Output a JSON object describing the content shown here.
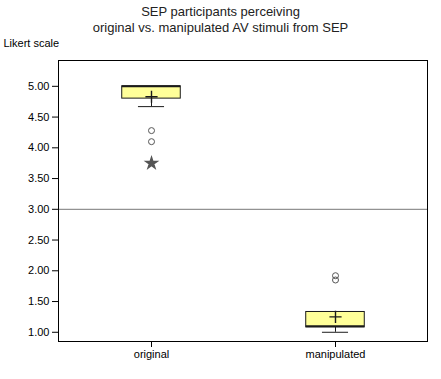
{
  "chart_data": {
    "type": "box",
    "title": "SEP participants perceiving",
    "subtitle": "original vs. manipulated AV stimuli from SEP",
    "ylabel": "Likert scale",
    "categories": [
      "original",
      "manipulated"
    ],
    "ylim": [
      0.85,
      5.42
    ],
    "yticks": [
      {
        "value": 1.0,
        "label": "1.00"
      },
      {
        "value": 1.5,
        "label": "1.50"
      },
      {
        "value": 2.0,
        "label": "2.00"
      },
      {
        "value": 2.5,
        "label": "2.50"
      },
      {
        "value": 3.0,
        "label": "3.00"
      },
      {
        "value": 3.5,
        "label": "3.50"
      },
      {
        "value": 4.0,
        "label": "4.00"
      },
      {
        "value": 4.5,
        "label": "4.50"
      },
      {
        "value": 5.0,
        "label": "5.00"
      }
    ],
    "grid": false,
    "color": "#ffff99",
    "edge_color": "#1a1a1a",
    "outlier_color": "#555555",
    "reference_line": {
      "y": 3.0,
      "color": "#777777"
    },
    "boxes": [
      {
        "q1": 4.8,
        "median": 5.0,
        "q3": 5.0,
        "whisker_low": 4.67,
        "whisker_high": 5.0,
        "mean": 4.83,
        "fliers": [
          4.28,
          4.1
        ],
        "extreme_fliers": [
          3.75
        ]
      },
      {
        "q1": 1.08,
        "median": 1.1,
        "q3": 1.33,
        "whisker_low": 1.0,
        "whisker_high": 1.33,
        "mean": 1.25,
        "fliers": [
          1.92,
          1.85
        ],
        "extreme_fliers": []
      }
    ]
  }
}
